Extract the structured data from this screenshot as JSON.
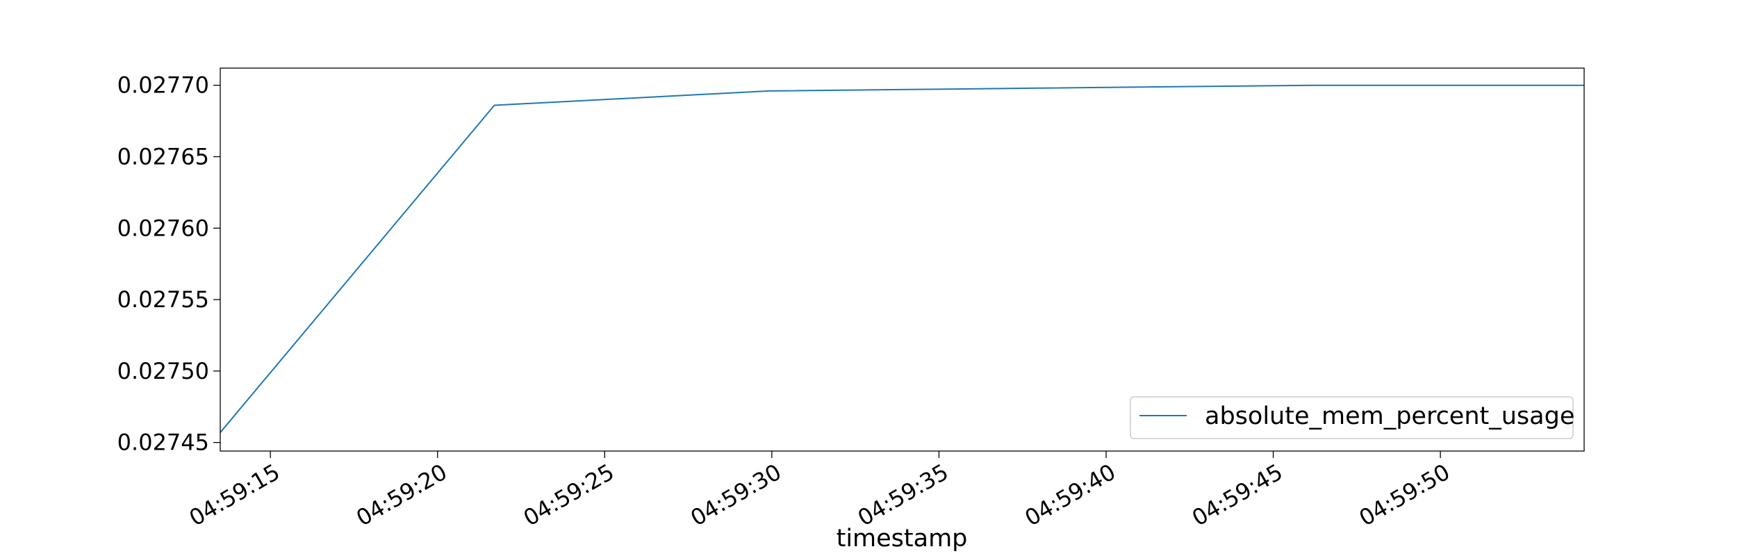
{
  "chart_data": {
    "type": "line",
    "title": "",
    "xlabel": "timestamp",
    "ylabel": "",
    "x_tick_labels": [
      "04:59:15",
      "04:59:20",
      "04:59:25",
      "04:59:30",
      "04:59:35",
      "04:59:40",
      "04:59:45",
      "04:59:50"
    ],
    "y_tick_labels": [
      "0.02745",
      "0.02750",
      "0.02755",
      "0.02760",
      "0.02765",
      "0.02770"
    ],
    "y_ticks": [
      0.02745,
      0.0275,
      0.02755,
      0.0276,
      0.02765,
      0.0277
    ],
    "xlim": [
      "04:59:13.5",
      "04:59:54.3"
    ],
    "ylim": [
      0.027444,
      0.027712
    ],
    "grid": false,
    "legend_position": "lower-right",
    "series": [
      {
        "name": "absolute_mem_percent_usage",
        "color": "#1f77b4",
        "points": [
          {
            "x": "04:59:13.5",
            "y": 0.027457
          },
          {
            "x": "04:59:21.7",
            "y": 0.027686
          },
          {
            "x": "04:59:29.9",
            "y": 0.027696
          },
          {
            "x": "04:59:38.0",
            "y": 0.027698
          },
          {
            "x": "04:59:46.2",
            "y": 0.0277
          },
          {
            "x": "04:59:54.3",
            "y": 0.0277
          }
        ]
      }
    ]
  }
}
